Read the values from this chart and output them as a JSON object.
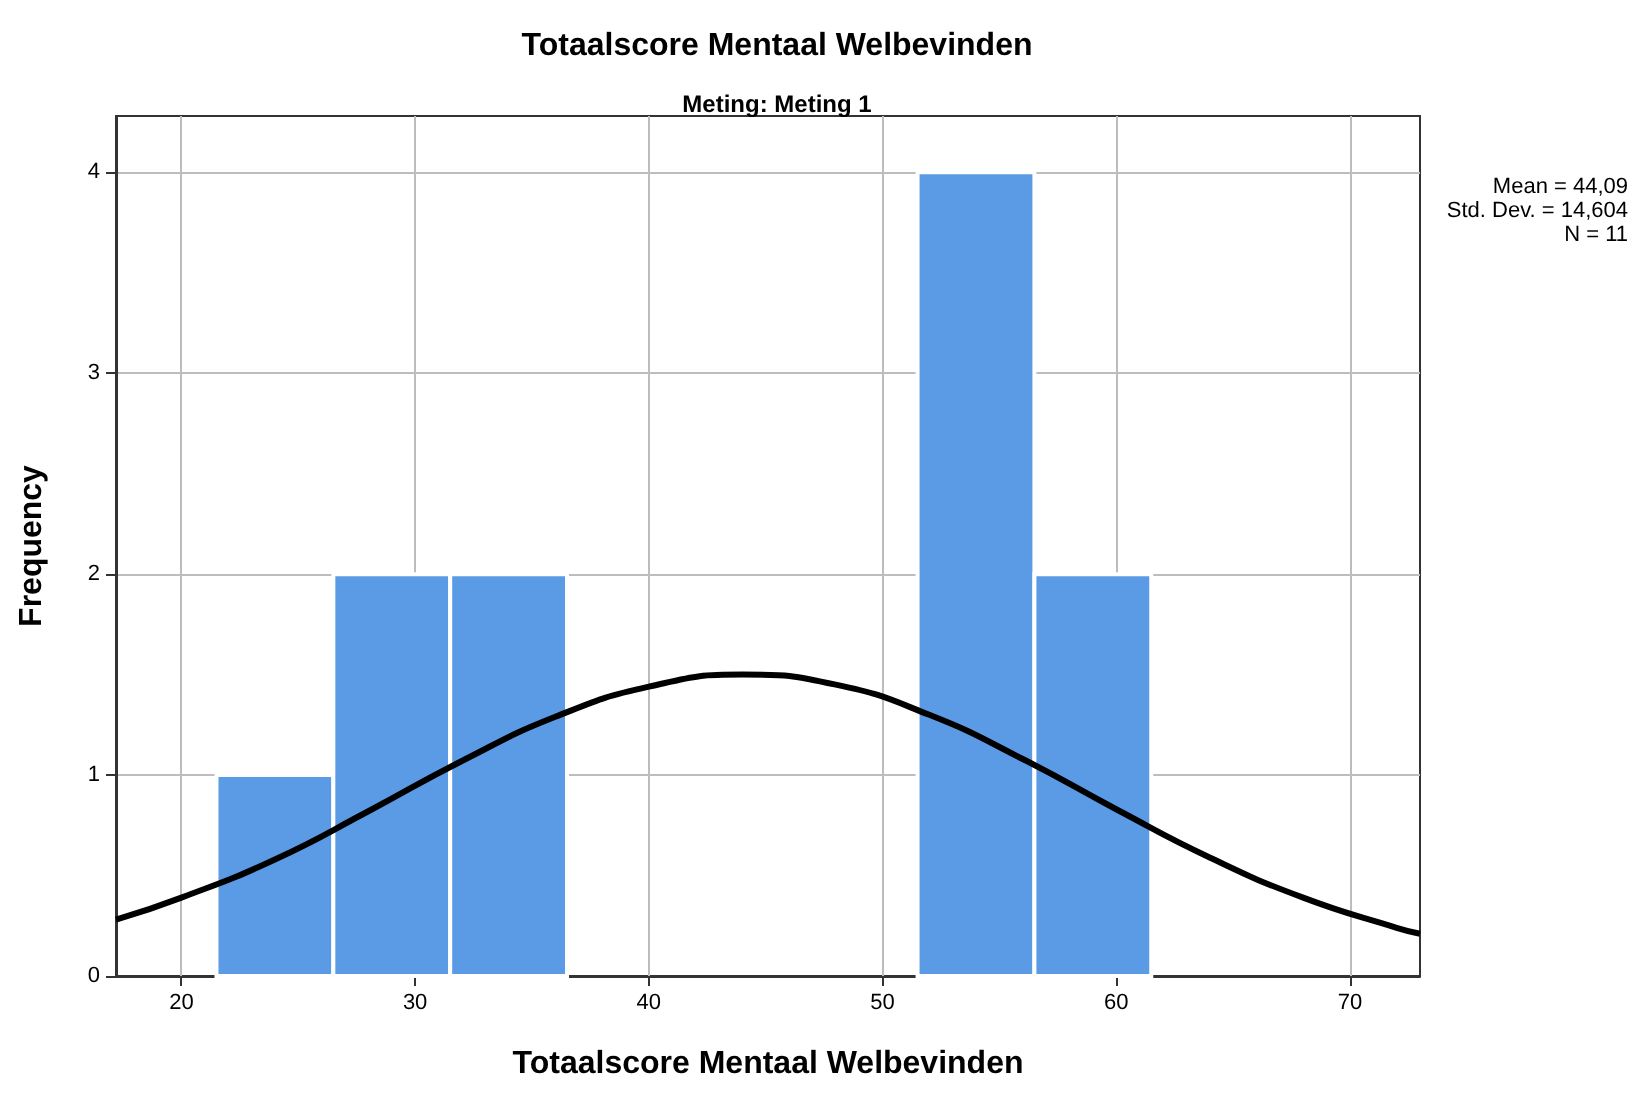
{
  "chart_data": {
    "type": "histogram",
    "title": "Totaalscore Mentaal Welbevinden",
    "subtitle": "Meting: Meting 1",
    "xlabel": "Totaalscore Mentaal Welbevinden",
    "ylabel": "Frequency",
    "annotations": [
      "Mean = 44,09",
      "Std. Dev. = 14,604",
      "N = 11"
    ],
    "bins": [
      21.5,
      26.5,
      31.5,
      36.5,
      41.5,
      46.5,
      51.5,
      56.5,
      61.5
    ],
    "series": [
      {
        "color": "#5b9be6",
        "values": [
          1,
          2,
          2,
          0,
          0,
          0,
          4,
          2
        ]
      },
      {
        "type": "line",
        "color": "#000000",
        "x": [
          17.2,
          20,
          24,
          28,
          32,
          36,
          40,
          44,
          48,
          52,
          56,
          60,
          64,
          68,
          72,
          73
        ],
        "values": [
          0.28,
          0.39,
          0.58,
          0.82,
          1.07,
          1.29,
          1.44,
          1.5,
          1.45,
          1.3,
          1.08,
          0.83,
          0.59,
          0.39,
          0.24,
          0.21
        ]
      }
    ],
    "xlim": [
      17.2,
      73
    ],
    "xticks": [
      20,
      30,
      40,
      50,
      60,
      70
    ],
    "ylim": [
      0,
      4.28
    ],
    "yticks": [
      0,
      1,
      2,
      3,
      4
    ],
    "grid": true
  }
}
